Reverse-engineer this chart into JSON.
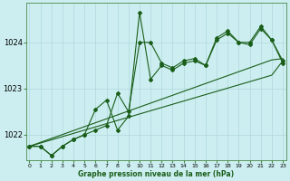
{
  "xlabel": "Graphe pression niveau de la mer (hPa)",
  "background_color": "#cceef0",
  "grid_color": "#b0d8dc",
  "line_color": "#1a5e1a",
  "x_values": [
    0,
    1,
    2,
    3,
    4,
    5,
    6,
    7,
    8,
    9,
    10,
    11,
    12,
    13,
    14,
    15,
    16,
    17,
    18,
    19,
    20,
    21,
    22,
    23
  ],
  "series1": [
    1021.75,
    1021.75,
    1021.55,
    1021.75,
    1021.9,
    1022.0,
    1022.55,
    1022.75,
    1022.1,
    1022.4,
    1024.65,
    1023.2,
    1023.5,
    1023.4,
    1023.55,
    1023.6,
    1023.5,
    1024.05,
    1024.2,
    1024.0,
    1023.95,
    1024.3,
    1024.05,
    1023.6
  ],
  "series2": [
    1021.75,
    1021.75,
    1021.55,
    1021.75,
    1021.9,
    1022.0,
    1022.1,
    1022.2,
    1022.9,
    1022.5,
    1024.0,
    1024.0,
    1023.55,
    1023.45,
    1023.6,
    1023.65,
    1023.5,
    1024.1,
    1024.25,
    1024.0,
    1024.0,
    1024.35,
    1024.05,
    1023.55
  ],
  "linear1": [
    1021.75,
    1021.835,
    1021.92,
    1022.005,
    1022.09,
    1022.175,
    1022.26,
    1022.345,
    1022.43,
    1022.515,
    1022.6,
    1022.685,
    1022.77,
    1022.855,
    1022.94,
    1023.025,
    1023.11,
    1023.195,
    1023.28,
    1023.365,
    1023.45,
    1023.535,
    1023.62,
    1023.65
  ],
  "linear2": [
    1021.75,
    1021.82,
    1021.89,
    1021.96,
    1022.03,
    1022.1,
    1022.17,
    1022.24,
    1022.31,
    1022.38,
    1022.45,
    1022.52,
    1022.59,
    1022.66,
    1022.73,
    1022.8,
    1022.87,
    1022.94,
    1023.01,
    1023.08,
    1023.15,
    1023.22,
    1023.29,
    1023.6
  ],
  "ylim": [
    1021.45,
    1024.85
  ],
  "yticks": [
    1022,
    1023,
    1024
  ],
  "xlim": [
    -0.3,
    23.3
  ]
}
